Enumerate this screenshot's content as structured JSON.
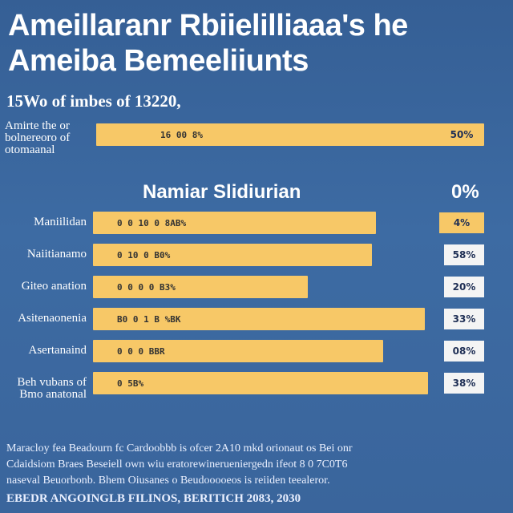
{
  "title_line1": "Ameillaranr Rbiielilliaaa's he",
  "title_line2": "Ameiba Bemeeliiunts",
  "subtitle": "15Wo of imbes of 13220,",
  "section_title": "Namiar Slidiurian",
  "section_pct": "0%",
  "chart_data": {
    "type": "bar",
    "orientation": "horizontal",
    "top_row": {
      "label": "Amirte the or bolnereoro of otomaanal",
      "bar_label": "16 00 8%",
      "percent_label": "50%",
      "value": 0.82
    },
    "rows": [
      {
        "label": "Maniilidan",
        "bar_label": "0 0 10 0 8AB%",
        "percent_label": "4%",
        "value": 0.75,
        "box": "yellow"
      },
      {
        "label": "Naiitianamo",
        "bar_label": "0 10 0 B0%",
        "percent_label": "58%",
        "value": 0.74,
        "box": "white"
      },
      {
        "label": "Giteo anation",
        "bar_label": "0 0 0 0 B3%",
        "percent_label": "20%",
        "value": 0.57,
        "box": "white"
      },
      {
        "label": "Asitenaonenia",
        "bar_label": "B0 0 1 B %BK",
        "percent_label": "33%",
        "value": 0.88,
        "box": "white"
      },
      {
        "label": "Asertanaind",
        "bar_label": "0 0 0 BBR",
        "percent_label": "08%",
        "value": 0.77,
        "box": "white"
      },
      {
        "label": "Beh vubans of Bmo anatonal",
        "bar_label": "0 5B%",
        "percent_label": "38%",
        "value": 0.89,
        "box": "white"
      }
    ]
  },
  "footer": {
    "line1": "Maracloy fea Beadourn fc Cardoobbb is ofcer 2A10 mkd orionaut os Bei onr",
    "line2": "Cdaidsiom Braes Beseiell own wiu eratorewinerueniergedn ifeot 8 0 7C0T6",
    "line3": "naseval Beuorbonb. Bhem Oiusanes o Beudooooeos is reiiden teealeror.",
    "line4": "EBEDR ANGOINGLB FILINOS, BERITICH 2083, 2030"
  },
  "colors": {
    "background": "#3a659c",
    "bar": "#f7c867",
    "box_white": "#f4f4f4"
  }
}
